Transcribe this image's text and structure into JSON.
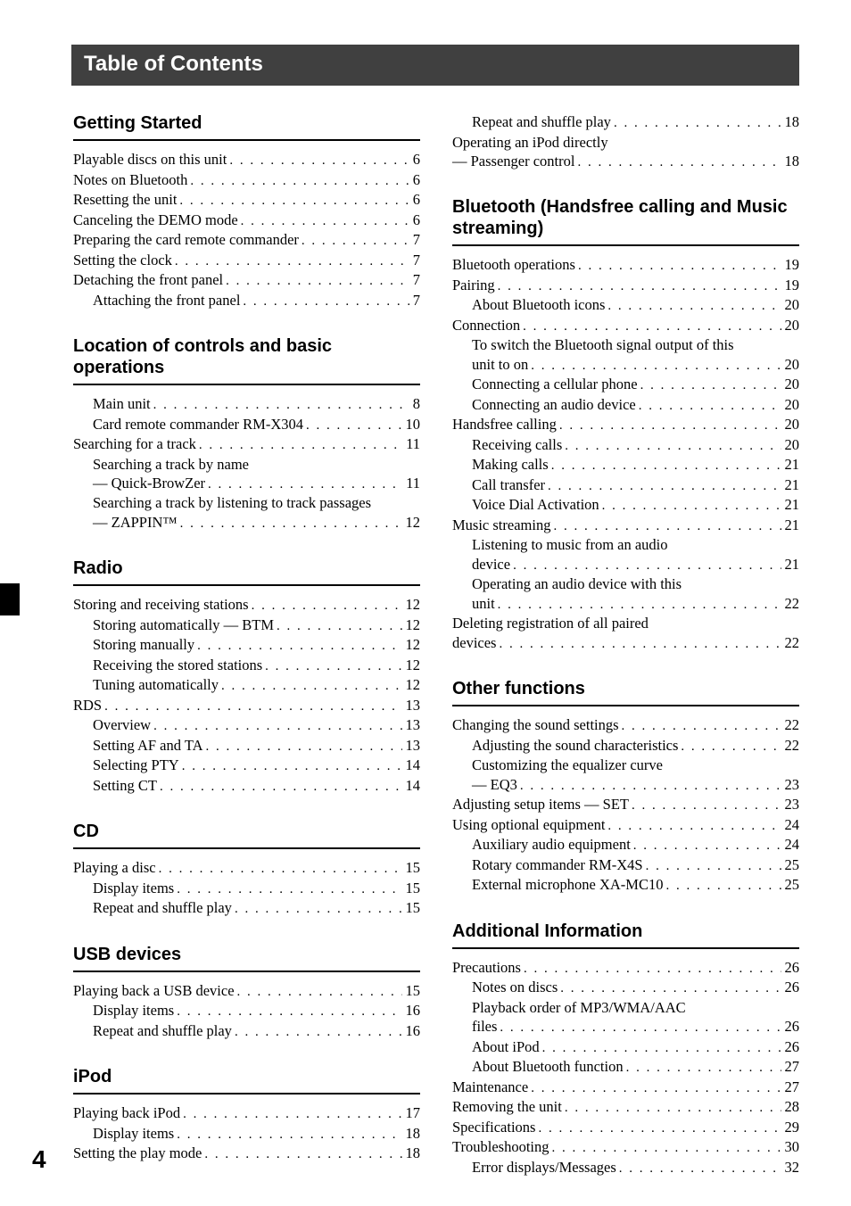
{
  "header": "Table of Contents",
  "pageNumber": "4",
  "left": [
    {
      "title": "Getting Started",
      "rule": "thick",
      "items": [
        {
          "label": "Playable discs on this unit",
          "page": "6",
          "indent": 0
        },
        {
          "label": "Notes on Bluetooth",
          "page": "6",
          "indent": 0
        },
        {
          "label": "Resetting the unit",
          "page": "6",
          "indent": 0
        },
        {
          "label": "Canceling the DEMO mode",
          "page": "6",
          "indent": 0
        },
        {
          "label": "Preparing the card remote commander",
          "page": "7",
          "indent": 0
        },
        {
          "label": "Setting the clock",
          "page": "7",
          "indent": 0
        },
        {
          "label": "Detaching the front panel",
          "page": "7",
          "indent": 0
        },
        {
          "label": "Attaching the front panel",
          "page": "7",
          "indent": 1
        }
      ]
    },
    {
      "title": "Location of controls and basic operations",
      "rule": "thick",
      "items": [
        {
          "label": "Main unit",
          "page": "8",
          "indent": 1
        },
        {
          "label": "Card remote commander RM-X304",
          "page": "10",
          "indent": 1
        },
        {
          "label": "Searching for a track",
          "page": "11",
          "indent": 0
        },
        {
          "label": "Searching a track by name",
          "indent": 1,
          "textonly": true
        },
        {
          "label": "— Quick-BrowZer",
          "page": "11",
          "indent": 1
        },
        {
          "label": "Searching a track by listening to track passages",
          "indent": 1,
          "textonly": true
        },
        {
          "label": "— ZAPPIN™",
          "page": "12",
          "indent": 1
        }
      ]
    },
    {
      "title": "Radio",
      "rule": "thick",
      "items": [
        {
          "label": "Storing and receiving stations",
          "page": "12",
          "indent": 0
        },
        {
          "label": "Storing automatically — BTM",
          "page": "12",
          "indent": 1
        },
        {
          "label": "Storing manually",
          "page": "12",
          "indent": 1
        },
        {
          "label": "Receiving the stored stations",
          "page": "12",
          "indent": 1
        },
        {
          "label": "Tuning automatically",
          "page": "12",
          "indent": 1
        },
        {
          "label": "RDS",
          "page": "13",
          "indent": 0
        },
        {
          "label": "Overview",
          "page": "13",
          "indent": 1
        },
        {
          "label": "Setting AF and TA",
          "page": "13",
          "indent": 1
        },
        {
          "label": "Selecting PTY",
          "page": "14",
          "indent": 1
        },
        {
          "label": "Setting CT",
          "page": "14",
          "indent": 1
        }
      ]
    },
    {
      "title": "CD",
      "rule": "thick",
      "items": [
        {
          "label": "Playing a disc",
          "page": "15",
          "indent": 0
        },
        {
          "label": "Display items",
          "page": "15",
          "indent": 1
        },
        {
          "label": "Repeat and shuffle play",
          "page": "15",
          "indent": 1
        }
      ]
    },
    {
      "title": "USB devices",
      "rule": "thick",
      "items": [
        {
          "label": "Playing back a USB device",
          "page": "15",
          "indent": 0
        },
        {
          "label": "Display items",
          "page": "16",
          "indent": 1
        },
        {
          "label": "Repeat and shuffle play",
          "page": "16",
          "indent": 1
        }
      ]
    },
    {
      "title": "iPod",
      "rule": "thick",
      "items": [
        {
          "label": "Playing back iPod",
          "page": "17",
          "indent": 0
        },
        {
          "label": "Display items",
          "page": "18",
          "indent": 1
        },
        {
          "label": "Setting the play mode",
          "page": "18",
          "indent": 0
        }
      ]
    }
  ],
  "rightTopItems": [
    {
      "label": "Repeat and shuffle play",
      "page": "18",
      "indent": 1
    },
    {
      "label": "Operating an iPod directly",
      "indent": 0,
      "textonly": true
    },
    {
      "label": "— Passenger control",
      "page": "18",
      "indent": 0
    }
  ],
  "right": [
    {
      "title": "Bluetooth (Handsfree calling and Music streaming)",
      "rule": "thick",
      "items": [
        {
          "label": "Bluetooth operations",
          "page": "19",
          "indent": 0
        },
        {
          "label": "Pairing",
          "page": "19",
          "indent": 0
        },
        {
          "label": "About Bluetooth icons",
          "page": "20",
          "indent": 1
        },
        {
          "label": "Connection",
          "page": "20",
          "indent": 0
        },
        {
          "label": "To switch the Bluetooth signal output of this",
          "indent": 1,
          "textonly": true
        },
        {
          "label": "unit to on",
          "page": "20",
          "indent": 1
        },
        {
          "label": "Connecting a cellular phone",
          "page": "20",
          "indent": 1
        },
        {
          "label": "Connecting an audio device",
          "page": "20",
          "indent": 1
        },
        {
          "label": "Handsfree calling",
          "page": "20",
          "indent": 0
        },
        {
          "label": "Receiving calls",
          "page": "20",
          "indent": 1
        },
        {
          "label": "Making calls",
          "page": "21",
          "indent": 1
        },
        {
          "label": "Call transfer",
          "page": "21",
          "indent": 1
        },
        {
          "label": "Voice Dial Activation",
          "page": "21",
          "indent": 1
        },
        {
          "label": "Music streaming",
          "page": "21",
          "indent": 0
        },
        {
          "label": "Listening to music from an audio",
          "indent": 1,
          "textonly": true
        },
        {
          "label": "device",
          "page": "21",
          "indent": 1
        },
        {
          "label": "Operating an audio device with this",
          "indent": 1,
          "textonly": true
        },
        {
          "label": "unit",
          "page": "22",
          "indent": 1
        },
        {
          "label": "Deleting registration of all paired",
          "indent": 0,
          "textonly": true
        },
        {
          "label": "devices",
          "page": "22",
          "indent": 0
        }
      ]
    },
    {
      "title": "Other functions",
      "rule": "thick",
      "items": [
        {
          "label": "Changing the sound settings",
          "page": "22",
          "indent": 0
        },
        {
          "label": "Adjusting the sound characteristics",
          "page": "22",
          "indent": 1
        },
        {
          "label": "Customizing the equalizer curve",
          "indent": 1,
          "textonly": true
        },
        {
          "label": "— EQ3",
          "page": "23",
          "indent": 1
        },
        {
          "label": "Adjusting setup items — SET",
          "page": "23",
          "indent": 0
        },
        {
          "label": "Using optional equipment",
          "page": "24",
          "indent": 0
        },
        {
          "label": "Auxiliary audio equipment",
          "page": "24",
          "indent": 1
        },
        {
          "label": "Rotary commander RM-X4S",
          "page": "25",
          "indent": 1
        },
        {
          "label": "External microphone XA-MC10",
          "page": "25",
          "indent": 1
        }
      ]
    },
    {
      "title": "Additional Information",
      "rule": "thick",
      "items": [
        {
          "label": "Precautions",
          "page": "26",
          "indent": 0
        },
        {
          "label": "Notes on discs",
          "page": "26",
          "indent": 1
        },
        {
          "label": "Playback order of MP3/WMA/AAC",
          "indent": 1,
          "textonly": true
        },
        {
          "label": "files",
          "page": "26",
          "indent": 1
        },
        {
          "label": "About iPod",
          "page": "26",
          "indent": 1
        },
        {
          "label": "About Bluetooth function",
          "page": "27",
          "indent": 1
        },
        {
          "label": "Maintenance",
          "page": "27",
          "indent": 0
        },
        {
          "label": "Removing the unit",
          "page": "28",
          "indent": 0
        },
        {
          "label": "Specifications",
          "page": "29",
          "indent": 0
        },
        {
          "label": "Troubleshooting",
          "page": "30",
          "indent": 0
        },
        {
          "label": "Error displays/Messages",
          "page": "32",
          "indent": 1
        }
      ]
    }
  ]
}
